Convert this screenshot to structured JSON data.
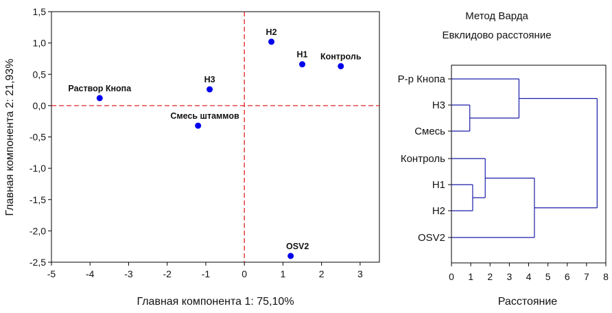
{
  "chart_data": [
    {
      "type": "scatter",
      "title": "",
      "xlabel": "Главная компонента 1: 75,10%",
      "ylabel": "Главная компонента 2: 21,93%",
      "xlim": [
        -5,
        3.5
      ],
      "ylim": [
        -2.5,
        1.5
      ],
      "xticks": [
        -5,
        -4,
        -3,
        -2,
        -1,
        0,
        1,
        2,
        3
      ],
      "xtick_labels": [
        "-5",
        "-4",
        "-3",
        "-2",
        "-1",
        "0",
        "1",
        "2",
        "3"
      ],
      "yticks": [
        1.5,
        1.0,
        0.5,
        0.0,
        -0.5,
        -1.0,
        -1.5,
        -2.0,
        -2.5
      ],
      "ytick_labels": [
        "1,5",
        "1,0",
        "0,5",
        "0,0",
        "-0,5",
        "-1,0",
        "-1,5",
        "-2,0",
        "-2,5"
      ],
      "reference_lines": {
        "x": 0,
        "y": 0,
        "color": "#e02020",
        "style": "dashed"
      },
      "marker_color": "#0000ee",
      "points": [
        {
          "label": "Раствор Кнопа",
          "x": -3.75,
          "y": 0.12,
          "label_pos": "above"
        },
        {
          "label": "Н3",
          "x": -0.9,
          "y": 0.26,
          "label_pos": "above"
        },
        {
          "label": "Смесь штаммов",
          "x": -1.2,
          "y": -0.32,
          "label_pos": "above-left"
        },
        {
          "label": "Н2",
          "x": 0.7,
          "y": 1.02,
          "label_pos": "above"
        },
        {
          "label": "Н1",
          "x": 1.5,
          "y": 0.66,
          "label_pos": "above"
        },
        {
          "label": "Контроль",
          "x": 2.5,
          "y": 0.63,
          "label_pos": "above"
        },
        {
          "label": "OSV2",
          "x": 1.2,
          "y": -2.4,
          "label_pos": "above-right"
        }
      ]
    },
    {
      "type": "dendrogram",
      "title_lines": [
        "Метод Варда",
        "Евклидово расстояние"
      ],
      "xlabel": "Расстояние",
      "xlim": [
        0,
        8
      ],
      "xticks": [
        0,
        1,
        2,
        3,
        4,
        5,
        6,
        7,
        8
      ],
      "xtick_labels": [
        "0",
        "1",
        "2",
        "3",
        "4",
        "5",
        "6",
        "7",
        "8"
      ],
      "line_color": "#1a1aa8",
      "leaves": [
        "Р-р Кнопа",
        "Н3",
        "Смесь",
        "Контроль",
        "Н1",
        "Н2",
        "OSV2"
      ],
      "merges": [
        {
          "id": "m1",
          "left": "leaf:1",
          "right": "leaf:2",
          "distance": 0.95
        },
        {
          "id": "m2",
          "left": "leaf:4",
          "right": "leaf:5",
          "distance": 1.1
        },
        {
          "id": "m3",
          "left": "leaf:3",
          "right": "m2",
          "distance": 1.75
        },
        {
          "id": "m4",
          "left": "leaf:0",
          "right": "m1",
          "distance": 3.5
        },
        {
          "id": "m5",
          "left": "m3",
          "right": "leaf:6",
          "distance": 4.3
        },
        {
          "id": "m6",
          "left": "m4",
          "right": "m5",
          "distance": 7.55
        }
      ]
    }
  ]
}
